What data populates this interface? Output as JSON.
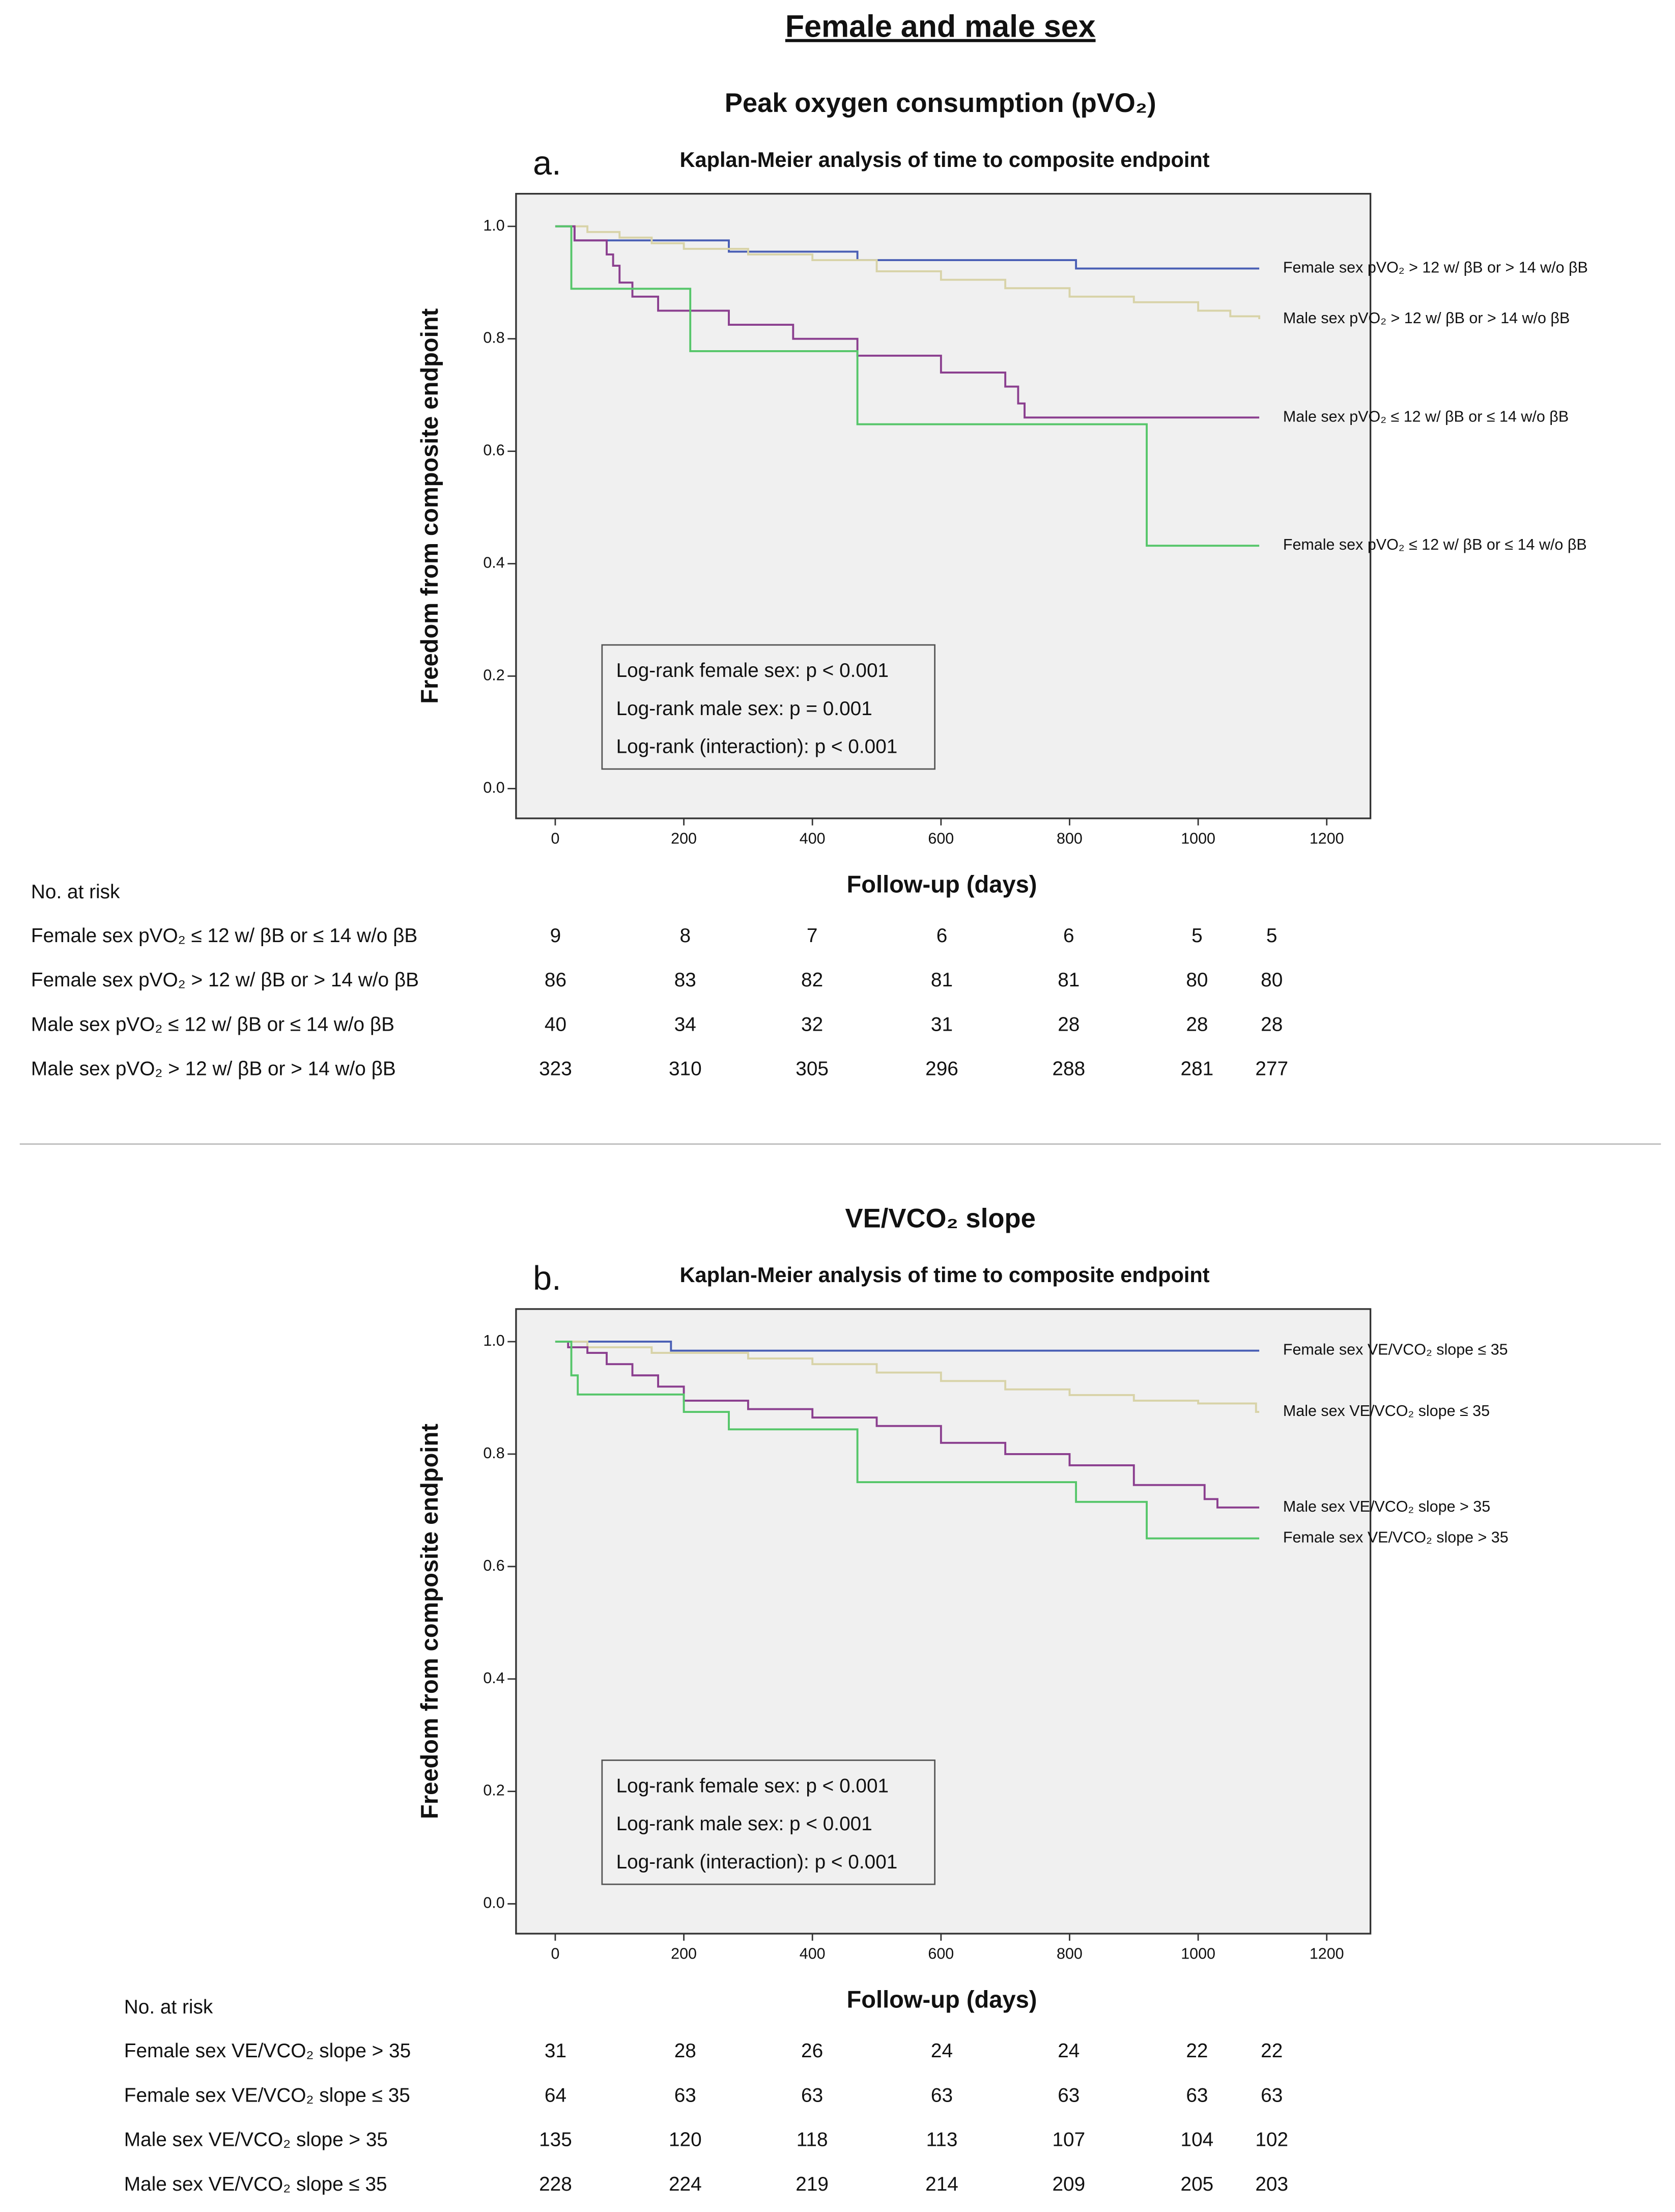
{
  "title": "Female and male sex",
  "chart_data": [
    {
      "type": "step",
      "subtitle": "Peak oxygen consumption (pVO₂)",
      "panel_label": "a.",
      "title": "Kaplan-Meier analysis of time to composite endpoint",
      "xlabel": "Follow-up (days)",
      "ylabel": "Freedom from composite endpoint",
      "xlim": [
        -61,
        1268
      ],
      "ylim": [
        -0.053,
        1.058
      ],
      "xticks": [
        0,
        200,
        400,
        600,
        800,
        1000,
        1200
      ],
      "yticks": [
        {
          "value": 0,
          "label": "0.0"
        },
        0.2,
        0.4,
        0.6,
        0.8,
        {
          "value": 1,
          "label": "1.0"
        }
      ],
      "series": [
        {
          "name": "Female sex pVO₂ > 12 w/ βB or > 14 w/o βB",
          "color": "#4a5fb5",
          "x": [
            0,
            30,
            270,
            470,
            810,
            1095
          ],
          "values": [
            1,
            0.975,
            0.955,
            0.94,
            0.925,
            0.925
          ]
        },
        {
          "name": "Male sex pVO₂ > 12 w/ βB or > 14 w/o βB",
          "color": "#d8d3a8",
          "x": [
            0,
            50,
            100,
            150,
            200,
            300,
            400,
            500,
            600,
            700,
            800,
            900,
            1000,
            1050,
            1095
          ],
          "values": [
            1,
            0.99,
            0.98,
            0.97,
            0.96,
            0.95,
            0.94,
            0.92,
            0.905,
            0.89,
            0.875,
            0.865,
            0.85,
            0.84,
            0.835
          ]
        },
        {
          "name": "Male sex pVO₂ ≤ 12 w/ βB or ≤ 14 w/o βB",
          "color": "#8b3f8f",
          "x": [
            0,
            30,
            80,
            90,
            100,
            120,
            160,
            270,
            370,
            470,
            600,
            700,
            720,
            730,
            1095
          ],
          "values": [
            1,
            0.975,
            0.95,
            0.93,
            0.9,
            0.875,
            0.85,
            0.825,
            0.8,
            0.77,
            0.74,
            0.715,
            0.685,
            0.66,
            0.66
          ]
        },
        {
          "name": "Female sex pVO₂ ≤ 12 w/ βB or ≤ 14 w/o βB",
          "color": "#56c66a",
          "x": [
            0,
            25,
            210,
            470,
            920,
            1095
          ],
          "values": [
            1,
            0.889,
            0.778,
            0.648,
            0.432,
            0.432
          ]
        }
      ],
      "annotations": [
        "Log-rank female sex: p < 0.001",
        "Log-rank male sex: p = 0.001",
        "Log-rank (interaction): p < 0.001"
      ],
      "risk_table": {
        "title": "No. at risk",
        "rows": [
          {
            "label": "Female sex pVO₂ ≤ 12 w/ βB or ≤ 14 w/o βB",
            "values": [
              9,
              8,
              7,
              6,
              6,
              5,
              5
            ]
          },
          {
            "label": "Female sex pVO₂ > 12 w/ βB or > 14 w/o βB",
            "values": [
              86,
              83,
              82,
              81,
              81,
              80,
              80
            ]
          },
          {
            "label": "Male sex pVO₂ ≤ 12 w/ βB or ≤ 14 w/o βB",
            "values": [
              40,
              34,
              32,
              31,
              28,
              28,
              28
            ]
          },
          {
            "label": "Male sex pVO₂ > 12 w/ βB or > 14 w/o βB",
            "values": [
              323,
              310,
              305,
              296,
              288,
              281,
              277
            ]
          }
        ]
      }
    },
    {
      "type": "step",
      "subtitle": "VE/VCO₂ slope",
      "panel_label": "b.",
      "title": "Kaplan-Meier analysis of time to composite endpoint",
      "xlabel": "Follow-up (days)",
      "ylabel": "Freedom from composite endpoint",
      "xlim": [
        -61,
        1268
      ],
      "ylim": [
        -0.053,
        1.058
      ],
      "xticks": [
        0,
        200,
        400,
        600,
        800,
        1000,
        1200
      ],
      "yticks": [
        {
          "value": 0,
          "label": "0.0"
        },
        0.2,
        0.4,
        0.6,
        0.8,
        {
          "value": 1,
          "label": "1.0"
        }
      ],
      "series": [
        {
          "name": "Female sex VE/VCO₂ slope ≤ 35",
          "color": "#4a5fb5",
          "x": [
            0,
            180,
            1095
          ],
          "values": [
            1,
            0.984,
            0.984
          ]
        },
        {
          "name": "Male sex VE/VCO₂ slope ≤ 35",
          "color": "#d8d3a8",
          "x": [
            0,
            50,
            150,
            300,
            400,
            500,
            600,
            700,
            800,
            900,
            1000,
            1090,
            1095
          ],
          "values": [
            1,
            0.99,
            0.98,
            0.97,
            0.96,
            0.945,
            0.93,
            0.915,
            0.905,
            0.895,
            0.89,
            0.875,
            0.875
          ]
        },
        {
          "name": "Male sex VE/VCO₂ slope > 35",
          "color": "#8b3f8f",
          "x": [
            0,
            20,
            50,
            80,
            120,
            160,
            200,
            300,
            400,
            500,
            600,
            700,
            800,
            900,
            1010,
            1030,
            1095
          ],
          "values": [
            1,
            0.99,
            0.98,
            0.96,
            0.94,
            0.92,
            0.895,
            0.88,
            0.865,
            0.85,
            0.82,
            0.8,
            0.78,
            0.745,
            0.72,
            0.705,
            0.705
          ]
        },
        {
          "name": "Female sex VE/VCO₂ slope > 35",
          "color": "#56c66a",
          "x": [
            0,
            25,
            35,
            200,
            270,
            470,
            810,
            920,
            1095
          ],
          "values": [
            1,
            0.94,
            0.906,
            0.875,
            0.844,
            0.75,
            0.715,
            0.65,
            0.65
          ]
        }
      ],
      "annotations": [
        "Log-rank female sex: p < 0.001",
        "Log-rank male sex: p < 0.001",
        "Log-rank (interaction): p < 0.001"
      ],
      "risk_table": {
        "title": "No. at risk",
        "rows": [
          {
            "label": "Female sex VE/VCO₂ slope > 35",
            "values": [
              31,
              28,
              26,
              24,
              24,
              22,
              22
            ]
          },
          {
            "label": "Female sex VE/VCO₂ slope ≤ 35",
            "values": [
              64,
              63,
              63,
              63,
              63,
              63,
              63
            ]
          },
          {
            "label": "Male sex VE/VCO₂ slope > 35",
            "values": [
              135,
              120,
              118,
              113,
              107,
              104,
              102
            ]
          },
          {
            "label": "Male sex VE/VCO₂ slope ≤ 35",
            "values": [
              228,
              224,
              219,
              214,
              209,
              205,
              203
            ]
          }
        ]
      }
    }
  ]
}
